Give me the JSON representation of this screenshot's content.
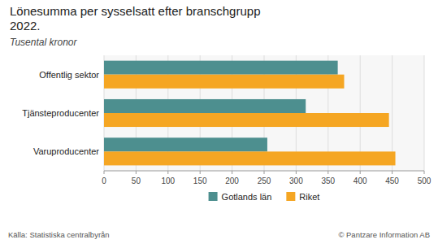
{
  "chart_data": {
    "type": "bar",
    "orientation": "horizontal",
    "title": "Lönesumma per sysselsatt efter branschgrupp\n2022.",
    "subtitle": "Tusental kronor",
    "categories": [
      "Offentlig sektor",
      "Tjänsteproducenter",
      "Varuproducenter"
    ],
    "series": [
      {
        "name": "Gotlands län",
        "color": "#4d8f8f",
        "values": [
          365,
          315,
          255
        ]
      },
      {
        "name": "Riket",
        "color": "#f5a623",
        "values": [
          375,
          445,
          455
        ]
      }
    ],
    "xlim": [
      0,
      500
    ],
    "xticks": [
      0,
      50,
      100,
      150,
      200,
      250,
      300,
      350,
      400,
      450,
      500
    ],
    "grid": true,
    "legend": "bottom",
    "annotations": [
      "Källa: Statistiska centralbyrån",
      "© Pantzare Information AB"
    ]
  }
}
